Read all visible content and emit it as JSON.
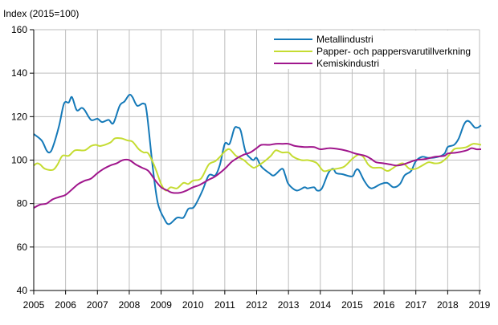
{
  "chart_data": {
    "type": "line",
    "ylabel": "Index (2015=100)",
    "xlim": [
      2005,
      2019.05
    ],
    "ylim": [
      40,
      160
    ],
    "yticks": [
      40,
      60,
      80,
      100,
      120,
      140,
      160
    ],
    "xticks": [
      "2005",
      "2006",
      "2007",
      "2008",
      "2009",
      "2010",
      "2011",
      "2012",
      "2013",
      "2014",
      "2015",
      "2016",
      "2017",
      "2018",
      "2019"
    ],
    "grid": true,
    "legend_position": "top-right",
    "series": [
      {
        "name": "Metallindustri",
        "color": "#1479b8",
        "x": [
          2005.0,
          2005.25,
          2005.4,
          2005.5,
          2005.6,
          2005.8,
          2005.95,
          2006.1,
          2006.2,
          2006.35,
          2006.5,
          2006.6,
          2006.8,
          2007.0,
          2007.15,
          2007.35,
          2007.5,
          2007.7,
          2007.85,
          2008.0,
          2008.1,
          2008.25,
          2008.45,
          2008.55,
          2008.75,
          2008.9,
          2009.1,
          2009.25,
          2009.5,
          2009.7,
          2009.85,
          2010.0,
          2010.1,
          2010.3,
          2010.5,
          2010.7,
          2010.85,
          2011.0,
          2011.15,
          2011.3,
          2011.4,
          2011.5,
          2011.65,
          2011.8,
          2011.9,
          2012.0,
          2012.15,
          2012.4,
          2012.55,
          2012.8,
          2012.9,
          2013.0,
          2013.25,
          2013.5,
          2013.6,
          2013.8,
          2013.9,
          2014.05,
          2014.25,
          2014.4,
          2014.5,
          2014.7,
          2015.0,
          2015.1,
          2015.2,
          2015.4,
          2015.6,
          2015.9,
          2016.1,
          2016.3,
          2016.5,
          2016.65,
          2016.85,
          2017.0,
          2017.2,
          2017.4,
          2017.7,
          2017.9,
          2018.0,
          2018.2,
          2018.35,
          2018.5,
          2018.6,
          2018.7,
          2018.85,
          2018.95,
          2019.05
        ],
        "y": [
          112,
          109,
          104.5,
          103.5,
          106,
          116,
          126,
          126.5,
          129,
          123,
          124,
          123,
          118.5,
          119,
          117.5,
          118.5,
          117,
          125,
          127,
          130,
          129,
          125,
          126,
          122,
          95,
          80,
          73,
          70.5,
          73.5,
          73.5,
          77.5,
          78,
          80,
          86,
          93,
          93,
          98,
          107.5,
          107.5,
          114.5,
          115,
          113.5,
          104,
          101,
          100,
          101,
          97,
          94,
          93,
          96,
          93,
          89,
          86,
          87.5,
          87,
          87.5,
          86,
          87,
          94,
          96,
          94,
          93.5,
          92.5,
          95,
          95.5,
          90,
          87,
          89,
          89.5,
          87.5,
          89,
          93,
          95,
          99.5,
          101.5,
          101,
          101.5,
          103,
          106,
          107,
          110,
          116,
          118,
          117.5,
          115,
          115,
          116
        ]
      },
      {
        "name": "Papper- och pappersvarutillverkning",
        "color": "#c5dc32",
        "x": [
          2005.0,
          2005.1,
          2005.2,
          2005.35,
          2005.6,
          2005.75,
          2005.9,
          2006.1,
          2006.3,
          2006.6,
          2006.8,
          2006.95,
          2007.1,
          2007.4,
          2007.55,
          2007.75,
          2007.95,
          2008.1,
          2008.3,
          2008.45,
          2008.6,
          2008.8,
          2009.0,
          2009.15,
          2009.3,
          2009.5,
          2009.7,
          2009.85,
          2010.0,
          2010.2,
          2010.3,
          2010.5,
          2010.7,
          2010.85,
          2011.0,
          2011.15,
          2011.35,
          2011.6,
          2011.75,
          2011.9,
          2012.0,
          2012.25,
          2012.45,
          2012.6,
          2012.8,
          2013.0,
          2013.15,
          2013.4,
          2013.6,
          2013.75,
          2013.9,
          2014.1,
          2014.3,
          2014.5,
          2014.75,
          2015.0,
          2015.2,
          2015.35,
          2015.5,
          2015.65,
          2015.9,
          2016.1,
          2016.25,
          2016.4,
          2016.6,
          2016.8,
          2017.0,
          2017.2,
          2017.4,
          2017.6,
          2017.8,
          2018.0,
          2018.2,
          2018.4,
          2018.6,
          2018.8,
          2019.05
        ],
        "y": [
          97.5,
          98.5,
          98,
          96,
          95.5,
          98,
          102,
          102,
          104.5,
          104.5,
          106.5,
          107,
          106.5,
          108,
          110,
          110,
          109,
          108.5,
          105,
          103.5,
          103,
          97,
          89,
          86,
          87.5,
          87,
          89.5,
          89,
          90.5,
          91,
          92.5,
          98,
          99.5,
          101.5,
          104,
          105,
          102,
          100,
          98,
          96.5,
          97,
          99.5,
          102,
          104.5,
          103.5,
          103.5,
          101.5,
          100,
          100,
          99.5,
          98.5,
          95,
          95.5,
          96,
          97,
          100.5,
          102.5,
          101.5,
          98,
          96.5,
          96.5,
          95,
          96,
          97.5,
          98.5,
          96,
          96,
          97.5,
          99,
          98.5,
          99,
          101.5,
          105,
          105.5,
          106,
          107.5,
          107
        ]
      },
      {
        "name": "Kemiskindustri",
        "color": "#a0168c",
        "x": [
          2005.0,
          2005.2,
          2005.4,
          2005.6,
          2005.8,
          2006.0,
          2006.2,
          2006.4,
          2006.6,
          2006.8,
          2007.0,
          2007.2,
          2007.4,
          2007.6,
          2007.8,
          2008.0,
          2008.2,
          2008.4,
          2008.6,
          2008.8,
          2009.0,
          2009.2,
          2009.35,
          2009.6,
          2009.8,
          2010.0,
          2010.2,
          2010.5,
          2010.7,
          2011.0,
          2011.2,
          2011.4,
          2011.6,
          2011.8,
          2012.0,
          2012.15,
          2012.4,
          2012.6,
          2012.8,
          2013.0,
          2013.2,
          2013.5,
          2013.8,
          2014.0,
          2014.3,
          2014.6,
          2014.9,
          2015.1,
          2015.4,
          2015.6,
          2015.75,
          2016.0,
          2016.2,
          2016.4,
          2016.6,
          2016.8,
          2017.0,
          2017.3,
          2017.6,
          2017.9,
          2018.0,
          2018.3,
          2018.6,
          2018.75,
          2018.9,
          2019.05
        ],
        "y": [
          78,
          79.5,
          80,
          82,
          83,
          84,
          86.5,
          89,
          90.5,
          91.5,
          94,
          96,
          97.5,
          98.5,
          100,
          100,
          98,
          96.5,
          95,
          91,
          87.5,
          86,
          85,
          85,
          86,
          87.5,
          88.5,
          91,
          92.5,
          96,
          99,
          101,
          102.5,
          103.5,
          105.5,
          107,
          107,
          107.5,
          107.5,
          107.5,
          106.5,
          106,
          106,
          105,
          105.5,
          105,
          104,
          103,
          102,
          100.5,
          99,
          98.5,
          98,
          97.5,
          98,
          99,
          100,
          100.5,
          101.5,
          102,
          103,
          103.5,
          104.5,
          105.5,
          105,
          105
        ]
      }
    ]
  }
}
